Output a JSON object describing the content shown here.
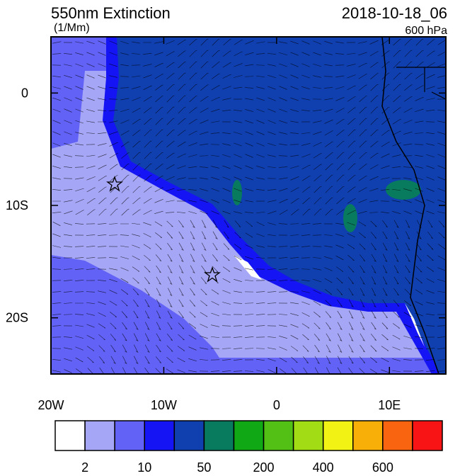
{
  "map": {
    "title": "550nm Extinction",
    "units": "(1/Mm)",
    "time": "2018-10-18_06",
    "level": "600 hPa",
    "xlim": [
      -20,
      15
    ],
    "ylim": [
      -25,
      5
    ],
    "xticks": [
      {
        "value": -20,
        "label": "20W"
      },
      {
        "value": -10,
        "label": "10W"
      },
      {
        "value": 0,
        "label": "0"
      },
      {
        "value": 10,
        "label": "10E"
      }
    ],
    "yticks": [
      {
        "value": 0,
        "label": "0"
      },
      {
        "value": -10,
        "label": "10S"
      },
      {
        "value": -20,
        "label": "20S"
      }
    ],
    "colorbar": {
      "colors": [
        "#ffffff",
        "#a6a6f6",
        "#6262f6",
        "#1414f4",
        "#1040b0",
        "#087a5e",
        "#10a814",
        "#52c014",
        "#a2dc14",
        "#f2f214",
        "#f8b008",
        "#f86410",
        "#f81414"
      ],
      "labels": [
        2,
        10,
        50,
        200,
        400,
        600
      ]
    }
  }
}
